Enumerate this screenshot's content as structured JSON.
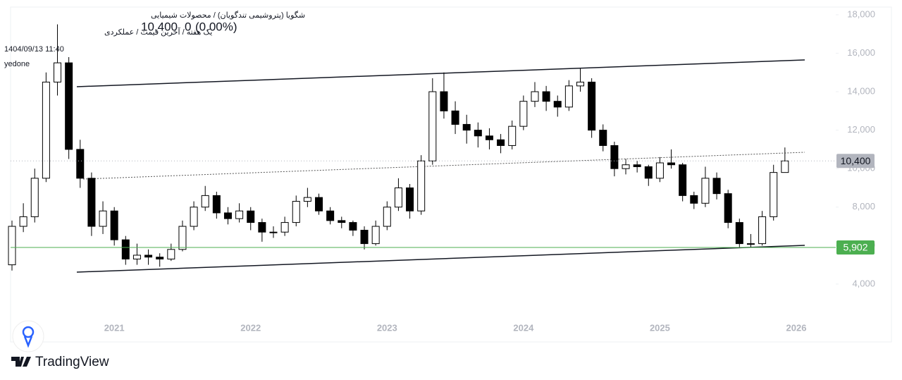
{
  "header": {
    "symbol": "شگویا (پتروشیمی تندگویان) / محصولات شیمیایی",
    "settings": "یک هفته / آخرین قیمت / عملکردی",
    "last_price": "10,400",
    "change": "0",
    "change_percent": "(0.00%)",
    "datetime": "1404/09/13 11:40",
    "author": "yedone"
  },
  "brand": "TradingView",
  "chart_data": {
    "type": "candlestick",
    "categories": [
      null,
      null,
      null,
      null,
      null,
      null,
      null,
      null,
      null,
      "2021",
      null,
      null,
      null,
      null,
      null,
      null,
      null,
      null,
      null,
      null,
      null,
      "2022",
      null,
      null,
      null,
      null,
      null,
      null,
      null,
      null,
      null,
      null,
      null,
      "2023",
      null,
      null,
      null,
      null,
      null,
      null,
      null,
      null,
      null,
      null,
      null,
      "2024",
      null,
      null,
      null,
      null,
      null,
      null,
      null,
      null,
      null,
      null,
      null,
      "2025",
      null,
      null,
      null,
      null,
      null,
      null,
      null,
      null,
      null,
      null,
      null,
      "2026"
    ],
    "open": [
      5000,
      7000,
      7500,
      9500,
      14500,
      15500,
      11000,
      9500,
      7000,
      7800,
      6300,
      5300,
      5500,
      5400,
      5300,
      5800,
      7000,
      8000,
      8600,
      7700,
      7400,
      7800,
      7200,
      6700,
      6700,
      7200,
      8300,
      8500,
      7800,
      7300,
      7200,
      6800,
      6100,
      7000,
      8000,
      9000,
      7800,
      10400,
      14000,
      13000,
      12300,
      12000,
      11700,
      11500,
      11200,
      12200,
      13500,
      14000,
      13500,
      13200,
      14300,
      14500,
      12000,
      11200,
      10000,
      10200,
      10100,
      9500,
      10300,
      10200,
      8600,
      8200,
      9500,
      8700,
      7200,
      6100,
      6100,
      7500,
      9800,
      null
    ],
    "high": [
      7300,
      8200,
      10000,
      15000,
      17500,
      15800,
      11500,
      9800,
      8300,
      8000,
      6500,
      6100,
      5800,
      5600,
      6100,
      7300,
      8300,
      9100,
      8800,
      8000,
      8200,
      8000,
      7400,
      7000,
      7500,
      8600,
      9000,
      8700,
      8000,
      7500,
      7300,
      7000,
      7300,
      8300,
      9500,
      9200,
      10700,
      14700,
      15000,
      13500,
      12800,
      12400,
      12100,
      11800,
      12500,
      13800,
      14500,
      14300,
      13800,
      14600,
      15200,
      14700,
      12300,
      11400,
      10500,
      10400,
      10200,
      10600,
      11000,
      10300,
      8800,
      10100,
      9800,
      8900,
      7400,
      6600,
      7800,
      10200,
      11100,
      null
    ],
    "low": [
      4700,
      6700,
      7200,
      9300,
      13800,
      10500,
      9000,
      6500,
      6600,
      6000,
      5000,
      5000,
      5000,
      4900,
      5200,
      5700,
      6800,
      7800,
      7400,
      7100,
      7200,
      6800,
      6200,
      6400,
      6500,
      7000,
      8000,
      7600,
      7100,
      6900,
      6500,
      5800,
      6000,
      6800,
      7800,
      7400,
      7600,
      10200,
      12600,
      11800,
      11300,
      11100,
      11000,
      10800,
      11000,
      12000,
      13200,
      13000,
      12700,
      13000,
      14000,
      11600,
      10900,
      9600,
      9700,
      9800,
      9100,
      9300,
      10000,
      8300,
      7900,
      8000,
      8400,
      6900,
      5900,
      5900,
      6000,
      7300,
      9800,
      null
    ],
    "close": [
      7000,
      7500,
      9500,
      14500,
      15500,
      11000,
      9500,
      7000,
      7800,
      6300,
      5300,
      5500,
      5400,
      5300,
      5800,
      7000,
      8000,
      8600,
      7700,
      7400,
      7800,
      7200,
      6700,
      6700,
      7200,
      8300,
      8500,
      7800,
      7300,
      7200,
      6800,
      6100,
      7000,
      8000,
      9000,
      7800,
      10400,
      14000,
      13000,
      12300,
      12000,
      11700,
      11500,
      11200,
      12200,
      13500,
      14000,
      13500,
      13200,
      14300,
      14500,
      12000,
      11200,
      10000,
      10200,
      10100,
      9500,
      10300,
      10200,
      8600,
      8200,
      9500,
      8700,
      7200,
      6100,
      6100,
      7500,
      9800,
      10400,
      null
    ],
    "up_color": "#ffffff",
    "down_color": "#000000",
    "wick_color": "#000000",
    "ylim": [
      2200,
      18400
    ],
    "yticks": [
      {
        "value": 4000,
        "label": "4,000"
      },
      {
        "value": 6000,
        "label": "6,000"
      },
      {
        "value": 8000,
        "label": "8,000"
      },
      {
        "value": 10000,
        "label": "10,000"
      },
      {
        "value": 12000,
        "label": "12,000"
      },
      {
        "value": 14000,
        "label": "14,000"
      },
      {
        "value": 16000,
        "label": "16,000"
      },
      {
        "value": 18000,
        "label": "18,000"
      }
    ],
    "price_lines": [
      {
        "value": 10400,
        "label": "10,400",
        "color": "#b2b5be",
        "text_color": "#131722",
        "dashed": true
      },
      {
        "value": 5902,
        "label": "5,902",
        "color": "#4caf50",
        "text_color": "#ffffff",
        "dashed": false
      }
    ]
  }
}
